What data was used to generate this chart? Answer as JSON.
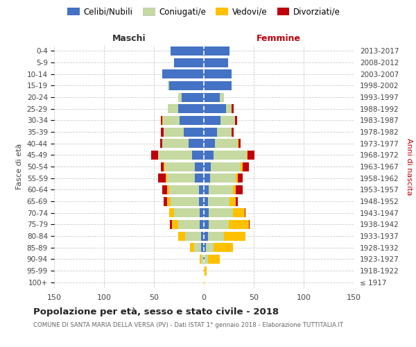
{
  "age_groups": [
    "100+",
    "95-99",
    "90-94",
    "85-89",
    "80-84",
    "75-79",
    "70-74",
    "65-69",
    "60-64",
    "55-59",
    "50-54",
    "45-49",
    "40-44",
    "35-39",
    "30-34",
    "25-29",
    "20-24",
    "15-19",
    "10-14",
    "5-9",
    "0-4"
  ],
  "birth_years": [
    "≤ 1917",
    "1918-1922",
    "1923-1927",
    "1928-1932",
    "1933-1937",
    "1938-1942",
    "1943-1947",
    "1948-1952",
    "1953-1957",
    "1958-1962",
    "1963-1967",
    "1968-1972",
    "1973-1977",
    "1978-1982",
    "1983-1987",
    "1988-1992",
    "1993-1997",
    "1998-2002",
    "2003-2007",
    "2008-2012",
    "2013-2017"
  ],
  "male_celibi": [
    0,
    0,
    1,
    3,
    3,
    4,
    4,
    5,
    5,
    9,
    9,
    12,
    15,
    20,
    24,
    26,
    22,
    35,
    42,
    30,
    33
  ],
  "male_coniugati": [
    0,
    1,
    2,
    7,
    16,
    22,
    26,
    28,
    30,
    28,
    30,
    34,
    27,
    20,
    17,
    10,
    4,
    1,
    0,
    0,
    0
  ],
  "male_vedovi": [
    0,
    0,
    1,
    4,
    7,
    6,
    5,
    4,
    2,
    1,
    1,
    0,
    0,
    0,
    1,
    0,
    0,
    0,
    0,
    0,
    0
  ],
  "male_divorziati": [
    0,
    0,
    0,
    0,
    0,
    2,
    0,
    3,
    5,
    8,
    3,
    7,
    2,
    3,
    1,
    0,
    0,
    0,
    0,
    0,
    0
  ],
  "female_celibi": [
    0,
    0,
    1,
    2,
    4,
    5,
    5,
    4,
    5,
    6,
    7,
    10,
    11,
    13,
    17,
    22,
    16,
    28,
    28,
    24,
    26
  ],
  "female_coniugati": [
    0,
    0,
    3,
    8,
    16,
    20,
    24,
    22,
    24,
    26,
    30,
    33,
    23,
    15,
    14,
    6,
    4,
    0,
    0,
    0,
    0
  ],
  "female_vedovi": [
    1,
    3,
    12,
    19,
    22,
    20,
    12,
    6,
    3,
    2,
    2,
    1,
    1,
    0,
    0,
    0,
    0,
    0,
    0,
    0,
    0
  ],
  "female_divorziati": [
    0,
    0,
    0,
    0,
    0,
    1,
    1,
    2,
    7,
    5,
    6,
    7,
    2,
    2,
    2,
    2,
    0,
    0,
    0,
    0,
    0
  ],
  "color_celibi": "#4472c4",
  "color_coniugati": "#c5d9a0",
  "color_vedovi": "#ffc000",
  "color_divorziati": "#c0000b",
  "title": "Popolazione per età, sesso e stato civile - 2018",
  "subtitle": "COMUNE DI SANTA MARIA DELLA VERSA (PV) - Dati ISTAT 1° gennaio 2018 - Elaborazione TUTTITALIA.IT",
  "xlabel_left": "Maschi",
  "xlabel_right": "Femmine",
  "ylabel_left": "Fasce di età",
  "ylabel_right": "Anni di nascita",
  "xlim": 150,
  "bg_color": "#ffffff",
  "grid_color": "#cccccc"
}
